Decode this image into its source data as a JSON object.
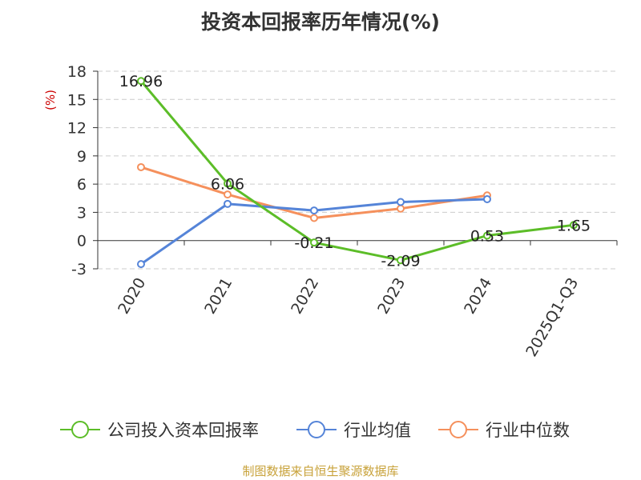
{
  "chart_data": {
    "type": "line",
    "title": "投资本回报率历年情况(%)",
    "ylabel": "(%)",
    "ylim": [
      -3,
      18
    ],
    "yticks": [
      -3,
      0,
      3,
      6,
      9,
      12,
      15,
      18
    ],
    "grid": true,
    "legend_position": "bottom",
    "categories": [
      "2020",
      "2021",
      "2022",
      "2023",
      "2024",
      "2025Q1-Q3"
    ],
    "series": [
      {
        "name": "公司投入资本回报率",
        "color": "#5cbd28",
        "values": [
          16.96,
          6.06,
          -0.21,
          -2.09,
          0.53,
          1.65
        ],
        "labels": true
      },
      {
        "name": "行业均值",
        "color": "#5584d8",
        "values": [
          -2.5,
          3.9,
          3.2,
          4.1,
          4.4,
          null
        ],
        "labels": false
      },
      {
        "name": "行业中位数",
        "color": "#f5905c",
        "values": [
          7.8,
          4.9,
          2.4,
          3.4,
          4.8,
          null
        ],
        "labels": false
      }
    ]
  },
  "footer": "制图数据来自恒生聚源数据库"
}
